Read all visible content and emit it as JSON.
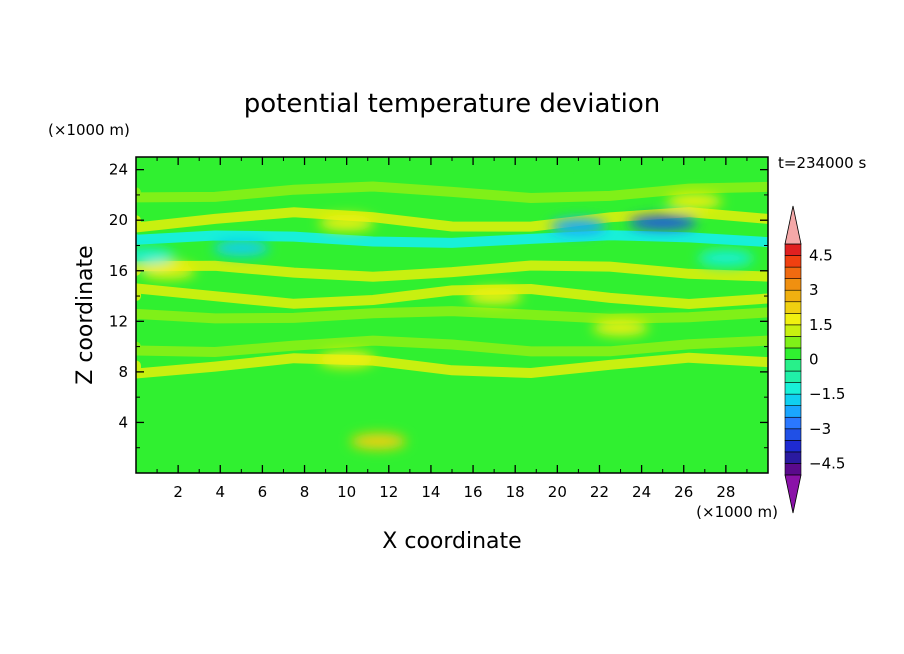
{
  "chart_data": {
    "type": "heatmap",
    "title": "potential temperature deviation",
    "xlabel": "X coordinate",
    "ylabel": "Z coordinate",
    "x_unit": "(×1000 m)",
    "y_unit": "(×1000 m)",
    "time_label": "t=234000 s",
    "xlim": [
      0,
      30
    ],
    "ylim": [
      0,
      25
    ],
    "x_ticks": [
      2,
      4,
      6,
      8,
      10,
      12,
      14,
      16,
      18,
      20,
      22,
      24,
      26,
      28
    ],
    "y_ticks": [
      4,
      8,
      12,
      16,
      20,
      24
    ],
    "colorbar": {
      "levels": [
        -5.0,
        -4.5,
        -4.0,
        -3.5,
        -3.0,
        -2.5,
        -2.0,
        -1.5,
        -1.0,
        -0.5,
        0.0,
        0.5,
        1.0,
        1.5,
        2.0,
        2.5,
        3.0,
        3.5,
        4.0,
        4.5,
        5.0
      ],
      "colors": [
        "#5a0a8c",
        "#2a1aa0",
        "#1e2ad2",
        "#2050e6",
        "#2a78ff",
        "#1aa6ff",
        "#10d0f0",
        "#18f0d8",
        "#20f0a8",
        "#28f08a",
        "#30f030",
        "#80f018",
        "#c8f010",
        "#f0f010",
        "#f0d010",
        "#f0b010",
        "#f09010",
        "#f06a10",
        "#f04010",
        "#e02020"
      ],
      "tick_labels": [
        "4.5",
        "3",
        "1.5",
        "0",
        "−1.5",
        "−3",
        "−4.5"
      ],
      "tick_values": [
        4.5,
        3.0,
        1.5,
        0.0,
        -1.5,
        -3.0,
        -4.5
      ],
      "under_color": "#8a12a8",
      "over_color": "#f4a8a8"
    },
    "bands": [
      {
        "z": 23.5,
        "value": 0.2
      },
      {
        "z": 22.2,
        "value": 0.6
      },
      {
        "z": 20.0,
        "value": 1.2
      },
      {
        "z": 18.5,
        "value": -1.2
      },
      {
        "z": 16.0,
        "value": 1.0
      },
      {
        "z": 14.0,
        "value": 1.0
      },
      {
        "z": 12.5,
        "value": 0.8
      },
      {
        "z": 10.0,
        "value": 0.5
      },
      {
        "z": 8.5,
        "value": 1.0
      },
      {
        "z": 6.5,
        "value": 0.4
      },
      {
        "z": 3.0,
        "value": 0.3
      }
    ],
    "features": [
      {
        "x": 25.0,
        "z": 19.8,
        "value": -3.2
      },
      {
        "x": 21.0,
        "z": 19.5,
        "value": -2.2
      },
      {
        "x": 5.0,
        "z": 17.8,
        "value": -2.0
      },
      {
        "x": 0.5,
        "z": 17.2,
        "value": -1.5
      },
      {
        "x": 28.0,
        "z": 17.0,
        "value": -1.5
      },
      {
        "x": 10.0,
        "z": 19.8,
        "value": 1.7
      },
      {
        "x": 1.5,
        "z": 16.0,
        "value": 1.8
      },
      {
        "x": 17.0,
        "z": 14.0,
        "value": 1.6
      },
      {
        "x": 23.0,
        "z": 11.5,
        "value": 1.6
      },
      {
        "x": 11.5,
        "z": 2.5,
        "value": 2.0
      },
      {
        "x": 26.5,
        "z": 21.5,
        "value": 1.6
      },
      {
        "x": 10.0,
        "z": 9.0,
        "value": 1.5
      }
    ]
  }
}
